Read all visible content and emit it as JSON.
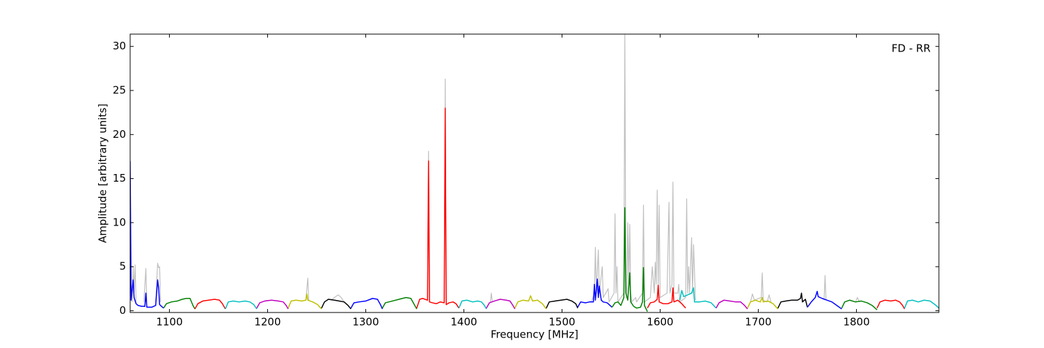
{
  "chart_data": {
    "type": "line",
    "xlabel": "Frequency [MHz]",
    "ylabel": "Amplitude [arbitrary units]",
    "annotation": "FD - RR",
    "xlim": [
      1060,
      1884
    ],
    "ylim": [
      -0.2,
      31.4
    ],
    "xticks": [
      1100,
      1200,
      1300,
      1400,
      1500,
      1600,
      1700,
      1800
    ],
    "yticks": [
      0,
      5,
      10,
      15,
      20,
      25,
      30
    ],
    "series": [
      {
        "color": "#bfbfbf",
        "x": [
          1062,
          1063,
          1064,
          1065,
          1066
        ],
        "values": [
          1.0,
          5.0,
          2.0,
          5.2,
          1.0
        ]
      },
      {
        "color": "#bfbfbf",
        "x": [
          1074,
          1076,
          1077
        ],
        "values": [
          1.0,
          4.8,
          1.0
        ]
      },
      {
        "color": "#bfbfbf",
        "x": [
          1086,
          1088,
          1089,
          1090,
          1091
        ],
        "values": [
          1.0,
          5.4,
          4.9,
          5.0,
          1.0
        ]
      },
      {
        "color": "#bfbfbf",
        "x": [
          1239,
          1241,
          1242
        ],
        "values": [
          1.2,
          3.7,
          1.2
        ]
      },
      {
        "color": "#bfbfbf",
        "x": [
          1265,
          1268,
          1272,
          1275,
          1278
        ],
        "values": [
          1.2,
          1.5,
          1.8,
          1.5,
          1.0
        ]
      },
      {
        "color": "#bfbfbf",
        "x": [
          1363,
          1364,
          1365
        ],
        "values": [
          1.4,
          18.1,
          1.2
        ]
      },
      {
        "color": "#bfbfbf",
        "x": [
          1380,
          1381,
          1382
        ],
        "values": [
          1.0,
          26.3,
          0.9
        ]
      },
      {
        "color": "#bfbfbf",
        "x": [
          1427,
          1428,
          1429
        ],
        "values": [
          1.0,
          2.0,
          1.0
        ]
      },
      {
        "color": "#bfbfbf",
        "x": [
          1530,
          1533,
          1534,
          1535,
          1537,
          1538,
          1541,
          1542,
          1547,
          1548,
          1553,
          1554,
          1555,
          1556,
          1557,
          1563,
          1564,
          1565,
          1566,
          1567,
          1568,
          1569,
          1570,
          1571,
          1575,
          1576,
          1582,
          1583,
          1584,
          1590,
          1592,
          1594,
          1595,
          1596,
          1597,
          1598,
          1599,
          1600,
          1607,
          1609,
          1610,
          1612,
          1613,
          1614,
          1618,
          1619,
          1620,
          1626,
          1627,
          1628,
          1629,
          1630,
          1632,
          1633,
          1634,
          1636
        ],
        "values": [
          1,
          2,
          7.2,
          2,
          6.9,
          2,
          5,
          1.5,
          2.5,
          1,
          2,
          11,
          2,
          5,
          1,
          2,
          31.4,
          3,
          1.5,
          10,
          3,
          9.8,
          2,
          1,
          1.5,
          1,
          2,
          12,
          1,
          1.5,
          5,
          2,
          5.5,
          3,
          13.7,
          3,
          12,
          1.5,
          2,
          12.3,
          2,
          3,
          14.6,
          2,
          2,
          3,
          1,
          1.5,
          12.7,
          2,
          5,
          2,
          8.3,
          2,
          7.5,
          1.2
        ]
      },
      {
        "color": "#bfbfbf",
        "x": [
          1692,
          1694,
          1696,
          1703,
          1704,
          1705,
          1709,
          1711,
          1713
        ],
        "values": [
          1.0,
          1.9,
          1.2,
          1.5,
          4.3,
          1.2,
          1.0,
          1.8,
          0.9
        ]
      },
      {
        "color": "#bfbfbf",
        "x": [
          1767,
          1768,
          1769
        ],
        "values": [
          1.2,
          4.0,
          1.2
        ]
      },
      {
        "color": "#bfbfbf",
        "x": [
          1799,
          1801,
          1803
        ],
        "values": [
          1.0,
          1.5,
          1.0
        ]
      },
      {
        "color": "#0000ff",
        "x": [
          1060,
          1061,
          1063,
          1064,
          1066,
          1068,
          1072,
          1075,
          1076,
          1077,
          1082,
          1086,
          1088,
          1089,
          1090,
          1092,
          1094
        ],
        "values": [
          17,
          1.2,
          3.5,
          1.5,
          0.8,
          0.6,
          0.5,
          0.5,
          2.0,
          0.4,
          0.4,
          0.6,
          3.5,
          2.6,
          0.7,
          0.5,
          0.3
        ]
      },
      {
        "color": "#008000",
        "x": [
          1094,
          1097,
          1102,
          1108,
          1113,
          1117,
          1121,
          1124,
          1126
        ],
        "values": [
          0.3,
          0.8,
          1.0,
          1.1,
          1.3,
          1.4,
          1.4,
          0.6,
          0.2
        ]
      },
      {
        "color": "#ff0000",
        "x": [
          1126,
          1129,
          1134,
          1140,
          1146,
          1151,
          1154,
          1157
        ],
        "values": [
          0.2,
          0.8,
          1.1,
          1.2,
          1.3,
          1.2,
          0.8,
          0.2
        ]
      },
      {
        "color": "#00bfbf",
        "x": [
          1157,
          1160,
          1165,
          1171,
          1177,
          1182,
          1186,
          1189
        ],
        "values": [
          0.2,
          1.0,
          1.1,
          1.0,
          1.1,
          1.0,
          0.7,
          0.2
        ]
      },
      {
        "color": "#bf00bf",
        "x": [
          1189,
          1192,
          1197,
          1204,
          1211,
          1216,
          1219,
          1221
        ],
        "values": [
          0.3,
          0.9,
          1.1,
          1.2,
          1.1,
          1.0,
          0.6,
          0.2
        ]
      },
      {
        "color": "#bfbf00",
        "x": [
          1221,
          1224,
          1229,
          1235,
          1239,
          1240,
          1241,
          1246,
          1251,
          1255
        ],
        "values": [
          0.3,
          1.1,
          1.2,
          1.1,
          1.2,
          1.9,
          1.2,
          1.0,
          0.7,
          0.2
        ]
      },
      {
        "color": "#000000",
        "x": [
          1255,
          1258,
          1262,
          1268,
          1273,
          1278,
          1282,
          1285
        ],
        "values": [
          0.3,
          1.0,
          1.3,
          1.2,
          1.1,
          1.0,
          0.6,
          0.2
        ]
      },
      {
        "color": "#0000ff",
        "x": [
          1285,
          1288,
          1293,
          1300,
          1307,
          1312,
          1315,
          1317
        ],
        "values": [
          0.3,
          0.9,
          1.0,
          1.1,
          1.4,
          1.3,
          0.7,
          0.2
        ]
      },
      {
        "color": "#008000",
        "x": [
          1317,
          1320,
          1327,
          1334,
          1341,
          1346,
          1349,
          1352
        ],
        "values": [
          0.3,
          0.9,
          1.1,
          1.3,
          1.5,
          1.4,
          0.8,
          0.2
        ]
      },
      {
        "color": "#ff0000",
        "x": [
          1352,
          1355,
          1358,
          1363,
          1364,
          1365,
          1368,
          1372,
          1376,
          1380,
          1381,
          1382,
          1385,
          1389,
          1392,
          1395
        ],
        "values": [
          0.3,
          1.3,
          1.4,
          1.2,
          17,
          1.0,
          0.9,
          0.8,
          1.0,
          0.9,
          23,
          0.7,
          0.9,
          1.0,
          0.8,
          0.3
        ]
      },
      {
        "color": "#00bfbf",
        "x": [
          1395,
          1398,
          1403,
          1409,
          1414,
          1418,
          1421,
          1423
        ],
        "values": [
          0.3,
          1.1,
          1.2,
          1.0,
          1.1,
          1.0,
          0.6,
          0.2
        ]
      },
      {
        "color": "#bf00bf",
        "x": [
          1423,
          1426,
          1431,
          1437,
          1443,
          1447,
          1450,
          1452
        ],
        "values": [
          0.3,
          0.9,
          1.1,
          1.3,
          1.2,
          1.1,
          0.6,
          0.2
        ]
      },
      {
        "color": "#bfbf00",
        "x": [
          1452,
          1455,
          1460,
          1466,
          1468,
          1470,
          1475,
          1480,
          1484
        ],
        "values": [
          0.3,
          1.0,
          1.2,
          1.1,
          1.7,
          1.1,
          1.2,
          0.8,
          0.2
        ]
      },
      {
        "color": "#000000",
        "x": [
          1484,
          1487,
          1493,
          1499,
          1505,
          1510,
          1514,
          1516
        ],
        "values": [
          0.3,
          1.0,
          1.1,
          1.2,
          1.3,
          1.1,
          0.8,
          0.3
        ]
      },
      {
        "color": "#0000ff",
        "x": [
          1516,
          1519,
          1524,
          1528,
          1532,
          1533,
          1534,
          1536,
          1537,
          1538,
          1540,
          1542,
          1546,
          1551
        ],
        "values": [
          0.4,
          1.0,
          0.9,
          1.0,
          1.0,
          3.0,
          1.2,
          3.6,
          1.5,
          2.8,
          1.2,
          1.0,
          0.9,
          0.4
        ]
      },
      {
        "color": "#008000",
        "x": [
          1551,
          1554,
          1557,
          1560,
          1563,
          1564,
          1565,
          1567,
          1569,
          1570,
          1573,
          1576,
          1580,
          1582,
          1583,
          1584,
          1587
        ],
        "values": [
          0.4,
          0.9,
          1.0,
          0.6,
          1.5,
          11.7,
          2.0,
          1.2,
          4.3,
          1.0,
          0.5,
          0.3,
          0.4,
          1.0,
          4.9,
          0.6,
          -0.1
        ]
      },
      {
        "color": "#ff0000",
        "x": [
          1587,
          1590,
          1594,
          1597,
          1598,
          1599,
          1603,
          1608,
          1612,
          1613,
          1614,
          1618,
          1622,
          1626
        ],
        "values": [
          0.3,
          0.9,
          1.0,
          1.3,
          2.9,
          1.0,
          0.8,
          0.8,
          1.0,
          2.6,
          1.0,
          1.2,
          0.8,
          0.3
        ]
      },
      {
        "color": "#00bfbf",
        "x": [
          1620,
          1622,
          1624,
          1628,
          1632,
          1634,
          1635,
          1640,
          1646,
          1652,
          1657
        ],
        "values": [
          1.2,
          2.3,
          1.6,
          1.8,
          2.0,
          2.6,
          1.0,
          1.0,
          1.1,
          0.9,
          0.3
        ]
      },
      {
        "color": "#bf00bf",
        "x": [
          1657,
          1660,
          1665,
          1671,
          1677,
          1682,
          1686,
          1689
        ],
        "values": [
          0.3,
          0.9,
          1.2,
          1.1,
          1.0,
          1.0,
          0.6,
          0.2
        ]
      },
      {
        "color": "#bfbf00",
        "x": [
          1689,
          1692,
          1697,
          1702,
          1704,
          1705,
          1710,
          1715,
          1720
        ],
        "values": [
          0.3,
          1.0,
          1.2,
          1.0,
          1.5,
          1.0,
          1.1,
          0.8,
          0.2
        ]
      },
      {
        "color": "#000000",
        "x": [
          1720,
          1723,
          1728,
          1734,
          1740,
          1743,
          1744,
          1745,
          1748,
          1750
        ],
        "values": [
          0.3,
          1.0,
          1.1,
          1.2,
          1.2,
          1.4,
          2.0,
          1.0,
          1.3,
          0.4
        ]
      },
      {
        "color": "#0000ff",
        "x": [
          1750,
          1754,
          1758,
          1760,
          1761,
          1765,
          1770,
          1775,
          1780,
          1785
        ],
        "values": [
          0.4,
          1.0,
          1.5,
          2.2,
          1.6,
          1.4,
          1.2,
          1.0,
          0.6,
          0.2
        ]
      },
      {
        "color": "#008000",
        "x": [
          1785,
          1788,
          1793,
          1799,
          1805,
          1811,
          1816,
          1821
        ],
        "values": [
          0.3,
          1.0,
          1.2,
          1.0,
          1.1,
          0.9,
          0.6,
          0.1
        ]
      },
      {
        "color": "#ff0000",
        "x": [
          1821,
          1824,
          1829,
          1835,
          1840,
          1844,
          1847,
          1849
        ],
        "values": [
          0.3,
          1.0,
          1.2,
          1.1,
          1.2,
          1.0,
          0.6,
          0.2
        ]
      },
      {
        "color": "#00bfbf",
        "x": [
          1849,
          1852,
          1857,
          1863,
          1869,
          1875,
          1880,
          1884
        ],
        "values": [
          0.3,
          1.1,
          1.2,
          1.0,
          1.2,
          1.1,
          0.7,
          0.3
        ]
      }
    ]
  }
}
